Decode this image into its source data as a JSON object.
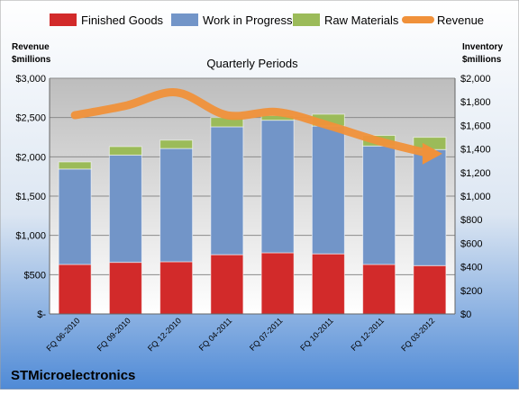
{
  "chart_data": {
    "type": "bar",
    "stacked": true,
    "title": "Quarterly Periods",
    "company": "STMicroelectronics",
    "left_axis_label": [
      "Revenue",
      "$millions"
    ],
    "right_axis_label": [
      "Inventory",
      "$millions"
    ],
    "categories": [
      "FQ 06-2010",
      "FQ 09-2010",
      "FQ 12-2010",
      "FQ 04-2011",
      "FQ 07-2011",
      "FQ 10-2011",
      "FQ 12-2011",
      "FQ 03-2012"
    ],
    "left_ticks": [
      "$-",
      "$500",
      "$1,000",
      "$1,500",
      "$2,000",
      "$2,500",
      "$3,000"
    ],
    "right_ticks": [
      "$0",
      "$200",
      "$400",
      "$600",
      "$800",
      "$1,000",
      "$1,200",
      "$1,400",
      "$1,600",
      "$1,800",
      "$2,000"
    ],
    "ylim_left": [
      0,
      3000
    ],
    "ylim_right": [
      0,
      2000
    ],
    "legend_position": "top",
    "series": [
      {
        "name": "Finished Goods",
        "axis": "right",
        "color": "#d22a2a",
        "values": [
          420,
          438,
          443,
          503,
          519,
          510,
          420,
          410
        ]
      },
      {
        "name": "Work in Progress",
        "axis": "right",
        "color": "#7295c8",
        "values": [
          810,
          910,
          961,
          1085,
          1125,
          1085,
          1005,
          985
        ]
      },
      {
        "name": "Raw Materials",
        "axis": "right",
        "color": "#9bbb59",
        "values": [
          60,
          72,
          71,
          79,
          40,
          100,
          90,
          104
        ]
      },
      {
        "name": "Revenue",
        "axis": "left",
        "type": "line",
        "color": "#f0913a",
        "values": [
          2530,
          2650,
          2820,
          2530,
          2570,
          2400,
          2200,
          2040
        ]
      }
    ]
  }
}
